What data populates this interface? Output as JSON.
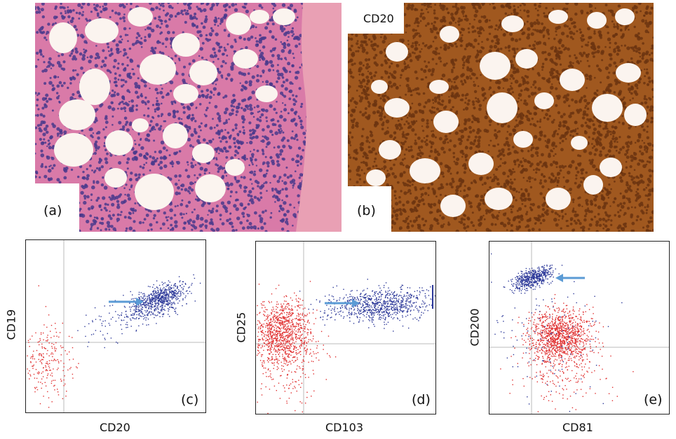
{
  "panels": {
    "a": {
      "label": "(a)"
    },
    "b": {
      "label": "(b)",
      "stain_label": "CD20"
    },
    "c": {
      "label": "(c)",
      "xlabel": "CD20",
      "ylabel": "CD19"
    },
    "d": {
      "label": "(d)",
      "xlabel": "CD103",
      "ylabel": "CD25"
    },
    "e": {
      "label": "(e)",
      "xlabel": "CD81",
      "ylabel": "CD200"
    }
  },
  "colors": {
    "he_background": "#d97aa8",
    "he_nuclei": "#4a3a8c",
    "cd20_stain": "#a0581f",
    "fat": "#fbf4ef",
    "bone": "#e9a0b4",
    "blue_population": "#2e3a9a",
    "red_population": "#e03030",
    "arrow": "#5b9bd5",
    "gate_line": "#bbbbbb"
  }
}
